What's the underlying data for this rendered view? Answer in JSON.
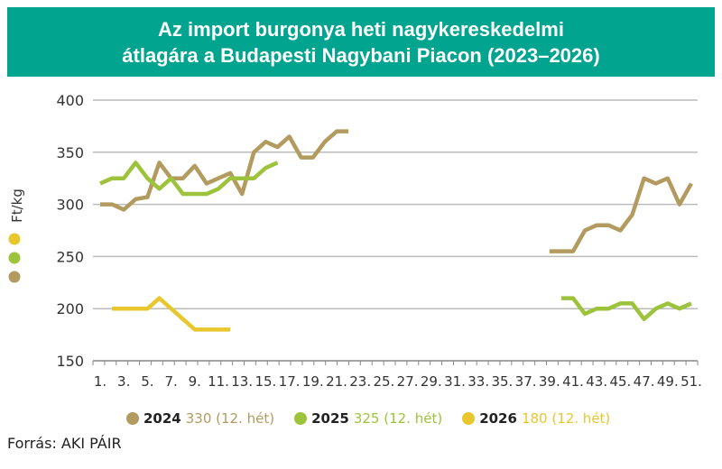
{
  "title_line1": "Az import burgonya heti nagykereskedelmi",
  "title_line2": "átlagára a Budapesti Nagybani Piacon (2023–2026)",
  "source": "Forrás: AKI PÁIR",
  "chart_data": {
    "type": "line",
    "ylabel": "Ft/kg",
    "xlabel": "",
    "ylim": [
      150,
      400
    ],
    "yticks": [
      150,
      200,
      250,
      300,
      350,
      400
    ],
    "xlim": [
      1,
      52
    ],
    "xtick_labels": [
      "1.",
      "3.",
      "5.",
      "7.",
      "9.",
      "11.",
      "13.",
      "15.",
      "17.",
      "19.",
      "21.",
      "23.",
      "25.",
      "27.",
      "29.",
      "31.",
      "33.",
      "35.",
      "37.",
      "39.",
      "41.",
      "43.",
      "45.",
      "47.",
      "49.",
      "51."
    ],
    "grid": true,
    "legend_placement": "bottom",
    "series": [
      {
        "name": "2024",
        "color": "#b39a5e",
        "legend_value": "330 (12. hét)",
        "points": [
          [
            1,
            300
          ],
          [
            2,
            300
          ],
          [
            3,
            295
          ],
          [
            4,
            305
          ],
          [
            5,
            307
          ],
          [
            6,
            340
          ],
          [
            7,
            325
          ],
          [
            8,
            325
          ],
          [
            9,
            337
          ],
          [
            10,
            320
          ],
          [
            11,
            325
          ],
          [
            12,
            330
          ],
          [
            13,
            310
          ],
          [
            14,
            350
          ],
          [
            15,
            360
          ],
          [
            16,
            355
          ],
          [
            17,
            365
          ],
          [
            18,
            345
          ],
          [
            19,
            345
          ],
          [
            20,
            360
          ],
          [
            21,
            370
          ],
          [
            22,
            370
          ],
          null,
          [
            39,
            255
          ],
          [
            40,
            255
          ],
          [
            41,
            255
          ],
          [
            42,
            275
          ],
          [
            43,
            280
          ],
          [
            44,
            280
          ],
          [
            45,
            275
          ],
          [
            46,
            290
          ],
          [
            47,
            325
          ],
          [
            48,
            320
          ],
          [
            49,
            325
          ],
          [
            50,
            300
          ],
          [
            51,
            320
          ]
        ]
      },
      {
        "name": "2025",
        "color": "#9cc33b",
        "legend_value": "325 (12. hét)",
        "points": [
          [
            1,
            320
          ],
          [
            2,
            325
          ],
          [
            3,
            325
          ],
          [
            4,
            340
          ],
          [
            5,
            325
          ],
          [
            6,
            315
          ],
          [
            7,
            325
          ],
          [
            8,
            310
          ],
          [
            9,
            310
          ],
          [
            10,
            310
          ],
          [
            11,
            315
          ],
          [
            12,
            325
          ],
          [
            13,
            325
          ],
          [
            14,
            325
          ],
          [
            15,
            335
          ],
          [
            16,
            340
          ],
          null,
          [
            40,
            210
          ],
          [
            41,
            210
          ],
          [
            42,
            195
          ],
          [
            43,
            200
          ],
          [
            44,
            200
          ],
          [
            45,
            205
          ],
          [
            46,
            205
          ],
          [
            47,
            190
          ],
          [
            48,
            200
          ],
          [
            49,
            205
          ],
          [
            50,
            200
          ],
          [
            51,
            205
          ]
        ]
      },
      {
        "name": "2026",
        "color": "#e8c72e",
        "legend_value": "180 (12. hét)",
        "points": [
          [
            2,
            200
          ],
          [
            3,
            200
          ],
          [
            4,
            200
          ],
          [
            5,
            200
          ],
          [
            6,
            210
          ],
          [
            7,
            200
          ],
          [
            8,
            190
          ],
          [
            9,
            180
          ],
          [
            10,
            180
          ],
          [
            11,
            180
          ],
          [
            12,
            180
          ]
        ]
      }
    ]
  }
}
